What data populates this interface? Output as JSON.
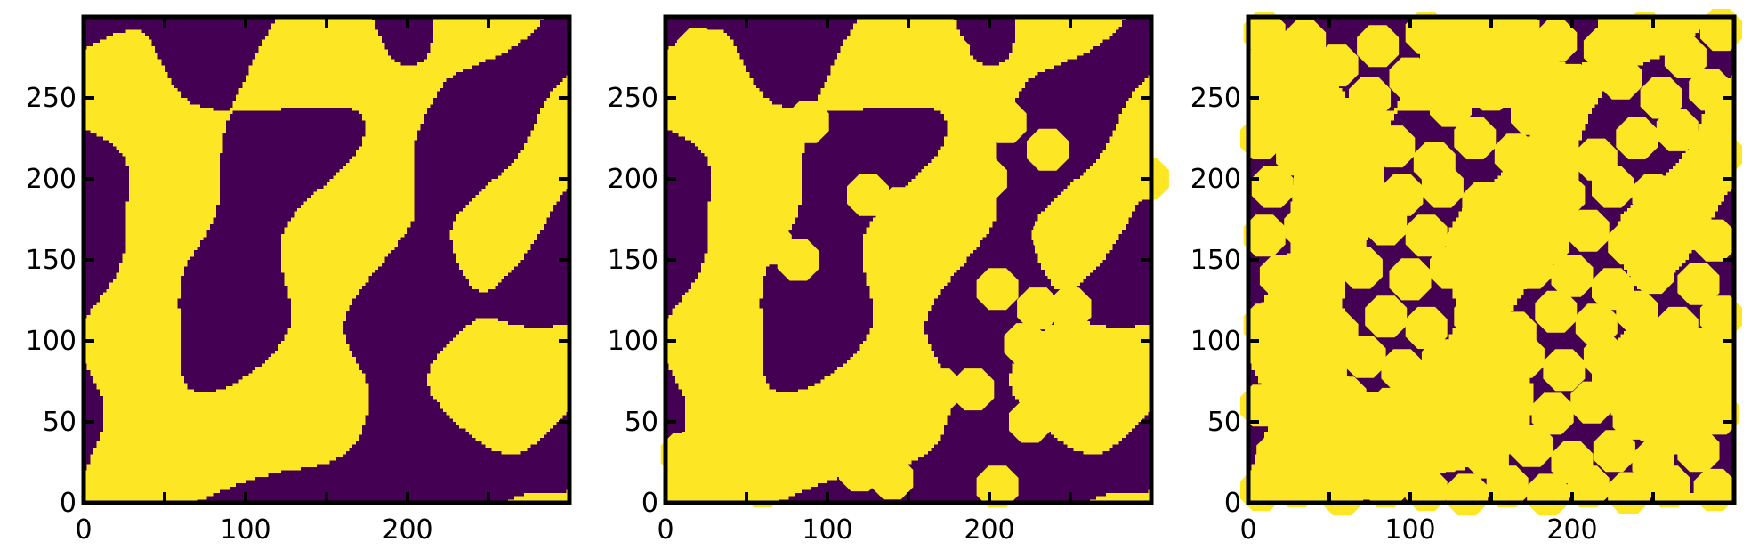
{
  "chart_data": [
    {
      "type": "heatmap",
      "title": "",
      "xlabel": "",
      "ylabel": "",
      "xlim": [
        0,
        300
      ],
      "ylim": [
        0,
        300
      ],
      "grid": false,
      "colors": {
        "phase_0": "#440154",
        "phase_1": "#fde725"
      },
      "xticks": [
        {
          "value": 0,
          "label": "0"
        },
        {
          "value": 100,
          "label": "100"
        },
        {
          "value": 200,
          "label": "200"
        }
      ],
      "yticks": [
        {
          "value": 0,
          "label": "0"
        },
        {
          "value": 50,
          "label": "50"
        },
        {
          "value": 100,
          "label": "100"
        },
        {
          "value": 150,
          "label": "150"
        },
        {
          "value": 200,
          "label": "200"
        },
        {
          "value": 250,
          "label": "250"
        }
      ],
      "field": {
        "seed": 11,
        "threshold": 0.0
      },
      "inclusions": []
    },
    {
      "type": "heatmap",
      "title": "",
      "xlabel": "",
      "ylabel": "",
      "xlim": [
        0,
        300
      ],
      "ylim": [
        0,
        300
      ],
      "grid": false,
      "colors": {
        "phase_0": "#440154",
        "phase_1": "#fde725"
      },
      "xticks": [
        {
          "value": 0,
          "label": "0"
        },
        {
          "value": 100,
          "label": "100"
        },
        {
          "value": 200,
          "label": "200"
        }
      ],
      "yticks": [
        {
          "value": 0,
          "label": "0"
        },
        {
          "value": 50,
          "label": "50"
        },
        {
          "value": 100,
          "label": "100"
        },
        {
          "value": 150,
          "label": "150"
        },
        {
          "value": 200,
          "label": "200"
        },
        {
          "value": 250,
          "label": "250"
        }
      ],
      "field": {
        "seed": 11,
        "threshold": 0.0
      },
      "inclusions": [
        [
          20,
          280
        ],
        [
          88,
          235
        ],
        [
          175,
          277
        ],
        [
          210,
          235
        ],
        [
          236,
          218
        ],
        [
          298,
          200
        ],
        [
          125,
          190
        ],
        [
          145,
          182
        ],
        [
          172,
          180
        ],
        [
          198,
          200
        ],
        [
          190,
          182
        ],
        [
          65,
          160
        ],
        [
          82,
          150
        ],
        [
          240,
          165
        ],
        [
          260,
          168
        ],
        [
          205,
          132
        ],
        [
          230,
          120
        ],
        [
          250,
          120
        ],
        [
          222,
          98
        ],
        [
          255,
          92
        ],
        [
          170,
          70
        ],
        [
          190,
          70
        ],
        [
          225,
          50
        ],
        [
          10,
          30
        ],
        [
          45,
          25
        ],
        [
          68,
          22
        ],
        [
          60,
          10
        ],
        [
          120,
          20
        ],
        [
          140,
          15
        ],
        [
          205,
          10
        ]
      ]
    },
    {
      "type": "heatmap",
      "title": "",
      "xlabel": "",
      "ylabel": "",
      "xlim": [
        0,
        300
      ],
      "ylim": [
        0,
        300
      ],
      "grid": false,
      "colors": {
        "phase_0": "#440154",
        "phase_1": "#fde725"
      },
      "xticks": [
        {
          "value": 0,
          "label": "0"
        },
        {
          "value": 100,
          "label": "100"
        },
        {
          "value": 200,
          "label": "200"
        }
      ],
      "yticks": [
        {
          "value": 0,
          "label": "0"
        },
        {
          "value": 50,
          "label": "50"
        },
        {
          "value": 100,
          "label": "100"
        },
        {
          "value": 150,
          "label": "150"
        },
        {
          "value": 200,
          "label": "200"
        },
        {
          "value": 250,
          "label": "250"
        }
      ],
      "field": {
        "seed": 11,
        "threshold": 0.0
      },
      "inclusions": [
        [
          10,
          290
        ],
        [
          35,
          285
        ],
        [
          55,
          270
        ],
        [
          80,
          282
        ],
        [
          110,
          290
        ],
        [
          140,
          280
        ],
        [
          165,
          265
        ],
        [
          190,
          285
        ],
        [
          220,
          280
        ],
        [
          245,
          290
        ],
        [
          270,
          275
        ],
        [
          292,
          292
        ],
        [
          20,
          255
        ],
        [
          50,
          240
        ],
        [
          75,
          250
        ],
        [
          100,
          262
        ],
        [
          125,
          245
        ],
        [
          150,
          255
        ],
        [
          175,
          240
        ],
        [
          200,
          258
        ],
        [
          230,
          262
        ],
        [
          255,
          250
        ],
        [
          285,
          255
        ],
        [
          8,
          225
        ],
        [
          30,
          215
        ],
        [
          60,
          225
        ],
        [
          90,
          220
        ],
        [
          115,
          210
        ],
        [
          140,
          225
        ],
        [
          165,
          215
        ],
        [
          190,
          225
        ],
        [
          215,
          212
        ],
        [
          240,
          225
        ],
        [
          265,
          230
        ],
        [
          292,
          215
        ],
        [
          15,
          195
        ],
        [
          40,
          190
        ],
        [
          65,
          200
        ],
        [
          95,
          190
        ],
        [
          120,
          195
        ],
        [
          145,
          185
        ],
        [
          170,
          200
        ],
        [
          195,
          190
        ],
        [
          225,
          195
        ],
        [
          250,
          190
        ],
        [
          280,
          195
        ],
        [
          10,
          165
        ],
        [
          35,
          170
        ],
        [
          60,
          160
        ],
        [
          85,
          172
        ],
        [
          110,
          165
        ],
        [
          135,
          160
        ],
        [
          160,
          170
        ],
        [
          185,
          160
        ],
        [
          210,
          168
        ],
        [
          235,
          160
        ],
        [
          260,
          170
        ],
        [
          288,
          162
        ],
        [
          20,
          140
        ],
        [
          45,
          135
        ],
        [
          70,
          145
        ],
        [
          100,
          138
        ],
        [
          125,
          145
        ],
        [
          150,
          135
        ],
        [
          175,
          145
        ],
        [
          200,
          140
        ],
        [
          225,
          132
        ],
        [
          250,
          142
        ],
        [
          278,
          135
        ],
        [
          10,
          110
        ],
        [
          38,
          120
        ],
        [
          55,
          105
        ],
        [
          85,
          115
        ],
        [
          110,
          108
        ],
        [
          140,
          115
        ],
        [
          165,
          105
        ],
        [
          190,
          118
        ],
        [
          215,
          110
        ],
        [
          240,
          118
        ],
        [
          265,
          108
        ],
        [
          292,
          115
        ],
        [
          22,
          85
        ],
        [
          48,
          80
        ],
        [
          72,
          90
        ],
        [
          95,
          82
        ],
        [
          120,
          88
        ],
        [
          145,
          80
        ],
        [
          170,
          90
        ],
        [
          195,
          82
        ],
        [
          220,
          90
        ],
        [
          245,
          80
        ],
        [
          272,
          88
        ],
        [
          8,
          60
        ],
        [
          35,
          55
        ],
        [
          60,
          65
        ],
        [
          88,
          58
        ],
        [
          115,
          60
        ],
        [
          140,
          52
        ],
        [
          162,
          62
        ],
        [
          188,
          55
        ],
        [
          212,
          62
        ],
        [
          238,
          52
        ],
        [
          262,
          60
        ],
        [
          290,
          55
        ],
        [
          18,
          30
        ],
        [
          45,
          28
        ],
        [
          70,
          35
        ],
        [
          95,
          25
        ],
        [
          122,
          32
        ],
        [
          148,
          28
        ],
        [
          175,
          35
        ],
        [
          200,
          25
        ],
        [
          226,
          32
        ],
        [
          250,
          25
        ],
        [
          278,
          32
        ],
        [
          8,
          8
        ],
        [
          30,
          10
        ],
        [
          58,
          5
        ],
        [
          85,
          10
        ],
        [
          110,
          8
        ],
        [
          135,
          5
        ],
        [
          160,
          10
        ],
        [
          185,
          5
        ],
        [
          210,
          10
        ],
        [
          235,
          6
        ],
        [
          260,
          10
        ],
        [
          288,
          8
        ]
      ]
    }
  ]
}
